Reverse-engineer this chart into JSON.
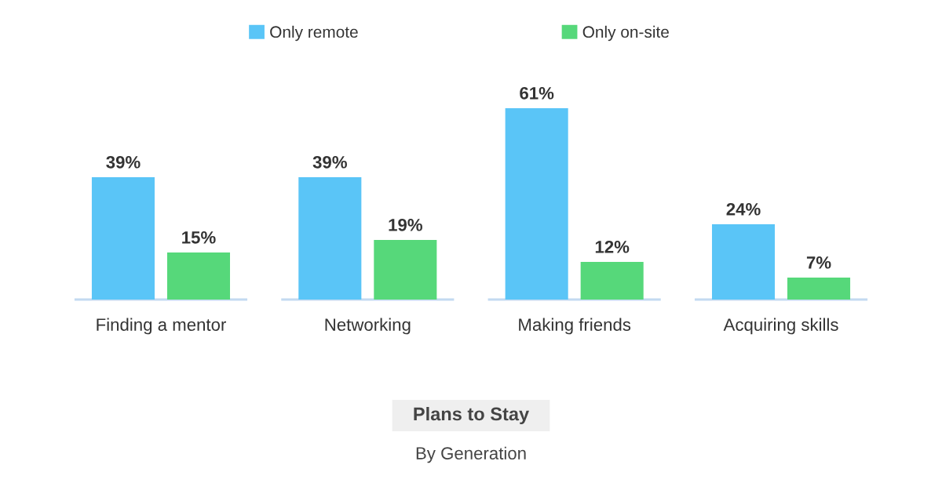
{
  "chart_data": {
    "type": "bar",
    "title": "Plans to Stay",
    "subtitle": "By Generation",
    "categories": [
      "Finding a mentor",
      "Networking",
      "Making friends",
      "Acquiring skills"
    ],
    "series": [
      {
        "name": "Only remote",
        "color": "#5ac5f7",
        "values": [
          39,
          39,
          61,
          24
        ],
        "value_labels": [
          "39%",
          "39%",
          "61%",
          "24%"
        ]
      },
      {
        "name": "Only on-site",
        "color": "#56d87a",
        "values": [
          15,
          19,
          12,
          7
        ],
        "value_labels": [
          "15%",
          "19%",
          "12%",
          "7%"
        ]
      }
    ],
    "legend": "top",
    "tick_labels": "x"
  }
}
